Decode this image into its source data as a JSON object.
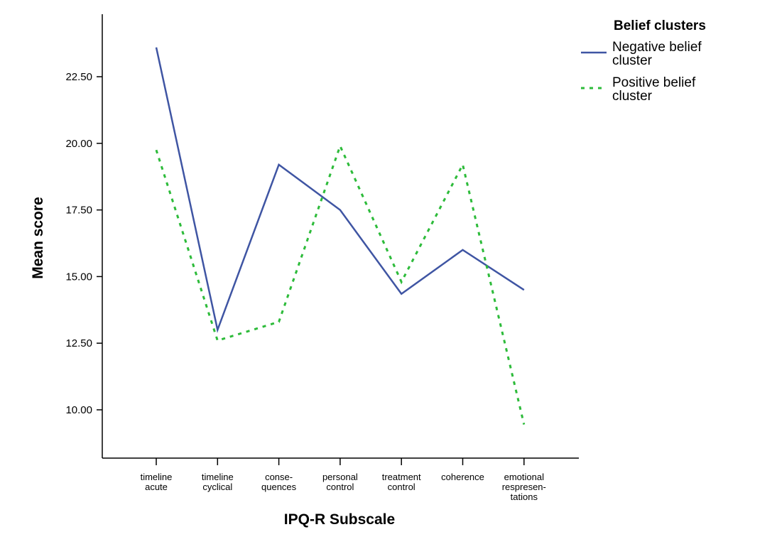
{
  "chart_data": {
    "type": "line",
    "categories": [
      [
        "timeline",
        "acute"
      ],
      [
        "timeline",
        "cyclical"
      ],
      [
        "conse-",
        "quences"
      ],
      [
        "personal",
        "control"
      ],
      [
        "treatment",
        "control"
      ],
      [
        "coherence"
      ],
      [
        "emotional",
        "respresen-",
        "tations"
      ]
    ],
    "xlabel": "IPQ-R Subscale",
    "ylabel": "Mean score",
    "ylim": [
      8.2,
      25.0
    ],
    "yticks": [
      10.0,
      12.5,
      15.0,
      17.5,
      20.0,
      22.5
    ],
    "ytick_labels": [
      "10.00",
      "12.50",
      "15.00",
      "17.50",
      "20.00",
      "22.50"
    ],
    "grid": false,
    "legend": {
      "title": "Belief clusters",
      "position": "top-right"
    },
    "series": [
      {
        "name": "Negative belief cluster",
        "name_lines": [
          "Negative belief",
          "cluster"
        ],
        "color": "#3f55a3",
        "style": "solid",
        "values": [
          23.6,
          13.0,
          19.2,
          17.5,
          14.35,
          16.0,
          14.5
        ]
      },
      {
        "name": "Positive belief cluster",
        "name_lines": [
          "Positive belief",
          "cluster"
        ],
        "color": "#2dbb3a",
        "style": "dotted",
        "values": [
          19.75,
          12.6,
          13.3,
          19.9,
          14.8,
          19.2,
          9.45
        ]
      }
    ]
  }
}
